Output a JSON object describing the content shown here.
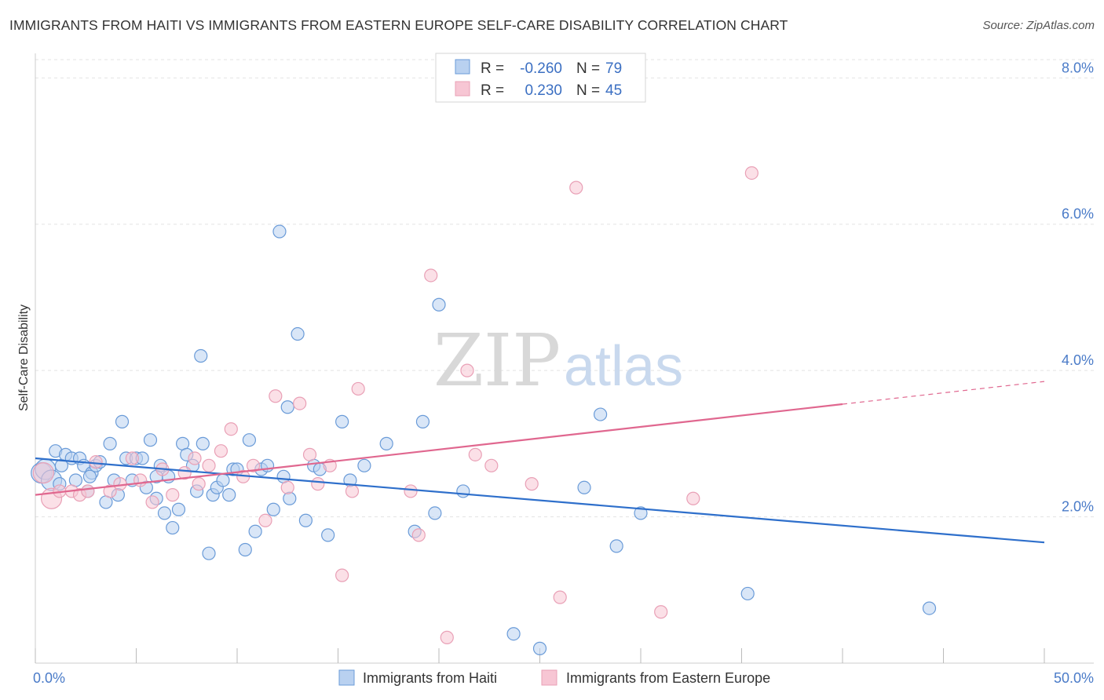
{
  "title": "IMMIGRANTS FROM HAITI VS IMMIGRANTS FROM EASTERN EUROPE SELF-CARE DISABILITY CORRELATION CHART",
  "source": "Source: ZipAtlas.com",
  "watermark": {
    "zip": "ZIP",
    "atlas": "atlas"
  },
  "chart_data": {
    "type": "scatter",
    "xlabel": "",
    "ylabel": "Self-Care Disability",
    "xlim": [
      0,
      50
    ],
    "ylim": [
      0,
      8.4
    ],
    "y_ticks": [
      {
        "v": 2,
        "label": "2.0%"
      },
      {
        "v": 4,
        "label": "4.0%"
      },
      {
        "v": 6,
        "label": "6.0%"
      },
      {
        "v": 8,
        "label": "8.0%"
      }
    ],
    "x_tick_labels": [
      {
        "v": 0,
        "label": "0.0%"
      },
      {
        "v": 50,
        "label": "50.0%"
      }
    ],
    "x_minor_ticks": [
      0,
      5,
      10,
      15,
      20,
      25,
      30,
      35,
      40,
      45,
      50
    ],
    "grid": true,
    "legend_position": "bottom-center",
    "stats": [
      {
        "r_label": "R =",
        "r_value": "-0.260",
        "n_label": "N =",
        "n_value": "79"
      },
      {
        "r_label": "R =",
        "r_value": "0.230",
        "n_label": "N =",
        "n_value": "45"
      }
    ],
    "series": [
      {
        "name": "Immigrants from Haiti",
        "color": "#6a9bd8",
        "fill": "#b9d1f0",
        "line_color": "#2e6fcb",
        "trend": {
          "x0": 0,
          "y0": 2.8,
          "x1": 50,
          "y1": 1.65,
          "solid_to": 50
        },
        "points": [
          [
            0.3,
            2.6
          ],
          [
            0.5,
            2.65
          ],
          [
            0.8,
            2.5
          ],
          [
            1.0,
            2.9
          ],
          [
            1.3,
            2.7
          ],
          [
            1.5,
            2.85
          ],
          [
            1.8,
            2.8
          ],
          [
            2.0,
            2.5
          ],
          [
            2.2,
            2.8
          ],
          [
            2.4,
            2.7
          ],
          [
            2.6,
            2.35
          ],
          [
            2.8,
            2.6
          ],
          [
            3.0,
            2.7
          ],
          [
            3.2,
            2.75
          ],
          [
            3.5,
            2.2
          ],
          [
            3.7,
            3.0
          ],
          [
            3.9,
            2.5
          ],
          [
            4.1,
            2.3
          ],
          [
            4.3,
            3.3
          ],
          [
            4.5,
            2.8
          ],
          [
            4.8,
            2.5
          ],
          [
            5.0,
            2.8
          ],
          [
            5.3,
            2.8
          ],
          [
            5.5,
            2.4
          ],
          [
            5.7,
            3.05
          ],
          [
            6.0,
            2.55
          ],
          [
            6.2,
            2.7
          ],
          [
            6.4,
            2.05
          ],
          [
            6.6,
            2.55
          ],
          [
            6.8,
            1.85
          ],
          [
            7.1,
            2.1
          ],
          [
            7.3,
            3.0
          ],
          [
            7.5,
            2.85
          ],
          [
            7.8,
            2.7
          ],
          [
            8.0,
            2.35
          ],
          [
            8.2,
            4.2
          ],
          [
            8.3,
            3.0
          ],
          [
            8.6,
            1.5
          ],
          [
            8.8,
            2.3
          ],
          [
            9.0,
            2.4
          ],
          [
            9.3,
            2.5
          ],
          [
            9.6,
            2.3
          ],
          [
            9.8,
            2.65
          ],
          [
            10.0,
            2.65
          ],
          [
            10.4,
            1.55
          ],
          [
            10.6,
            3.05
          ],
          [
            10.9,
            1.8
          ],
          [
            11.2,
            2.65
          ],
          [
            11.5,
            2.7
          ],
          [
            11.8,
            2.1
          ],
          [
            12.1,
            5.9
          ],
          [
            12.3,
            2.55
          ],
          [
            12.5,
            3.5
          ],
          [
            12.6,
            2.25
          ],
          [
            13.0,
            4.5
          ],
          [
            13.4,
            1.95
          ],
          [
            13.8,
            2.7
          ],
          [
            14.1,
            2.65
          ],
          [
            14.5,
            1.75
          ],
          [
            15.2,
            3.3
          ],
          [
            15.6,
            2.5
          ],
          [
            16.3,
            2.7
          ],
          [
            17.4,
            3.0
          ],
          [
            18.8,
            1.8
          ],
          [
            19.2,
            3.3
          ],
          [
            19.8,
            2.05
          ],
          [
            20.0,
            4.9
          ],
          [
            21.2,
            2.35
          ],
          [
            23.7,
            0.4
          ],
          [
            25.0,
            0.2
          ],
          [
            27.2,
            2.4
          ],
          [
            28.0,
            3.4
          ],
          [
            28.8,
            1.6
          ],
          [
            30.0,
            2.05
          ],
          [
            35.3,
            0.95
          ],
          [
            44.3,
            0.75
          ],
          [
            1.2,
            2.45
          ],
          [
            2.7,
            2.55
          ],
          [
            6.0,
            2.25
          ]
        ]
      },
      {
        "name": "Immigrants from Eastern Europe",
        "color": "#e9a0b6",
        "fill": "#f7c6d4",
        "line_color": "#e0678f",
        "trend": {
          "x0": 0,
          "y0": 2.3,
          "x1": 50,
          "y1": 3.85,
          "solid_to": 40
        },
        "points": [
          [
            0.4,
            2.6
          ],
          [
            0.8,
            2.25
          ],
          [
            1.2,
            2.35
          ],
          [
            1.8,
            2.35
          ],
          [
            2.2,
            2.3
          ],
          [
            2.6,
            2.35
          ],
          [
            3.0,
            2.75
          ],
          [
            3.7,
            2.35
          ],
          [
            4.2,
            2.45
          ],
          [
            4.8,
            2.8
          ],
          [
            5.2,
            2.5
          ],
          [
            5.8,
            2.2
          ],
          [
            6.3,
            2.65
          ],
          [
            6.8,
            2.3
          ],
          [
            7.4,
            2.6
          ],
          [
            7.9,
            2.8
          ],
          [
            8.1,
            2.45
          ],
          [
            8.6,
            2.7
          ],
          [
            9.2,
            2.9
          ],
          [
            9.7,
            3.2
          ],
          [
            10.3,
            2.55
          ],
          [
            10.8,
            2.7
          ],
          [
            11.4,
            1.95
          ],
          [
            11.9,
            3.65
          ],
          [
            12.5,
            2.4
          ],
          [
            13.1,
            3.55
          ],
          [
            13.6,
            2.85
          ],
          [
            14.0,
            2.45
          ],
          [
            14.6,
            2.7
          ],
          [
            15.2,
            1.2
          ],
          [
            15.7,
            2.35
          ],
          [
            16.0,
            3.75
          ],
          [
            18.6,
            2.35
          ],
          [
            19.0,
            1.75
          ],
          [
            19.6,
            5.3
          ],
          [
            20.4,
            0.35
          ],
          [
            21.4,
            4.0
          ],
          [
            21.8,
            2.85
          ],
          [
            22.6,
            2.7
          ],
          [
            24.6,
            2.45
          ],
          [
            26.0,
            0.9
          ],
          [
            26.8,
            6.5
          ],
          [
            31.0,
            0.7
          ],
          [
            32.6,
            2.25
          ],
          [
            35.5,
            6.7
          ]
        ]
      }
    ]
  }
}
